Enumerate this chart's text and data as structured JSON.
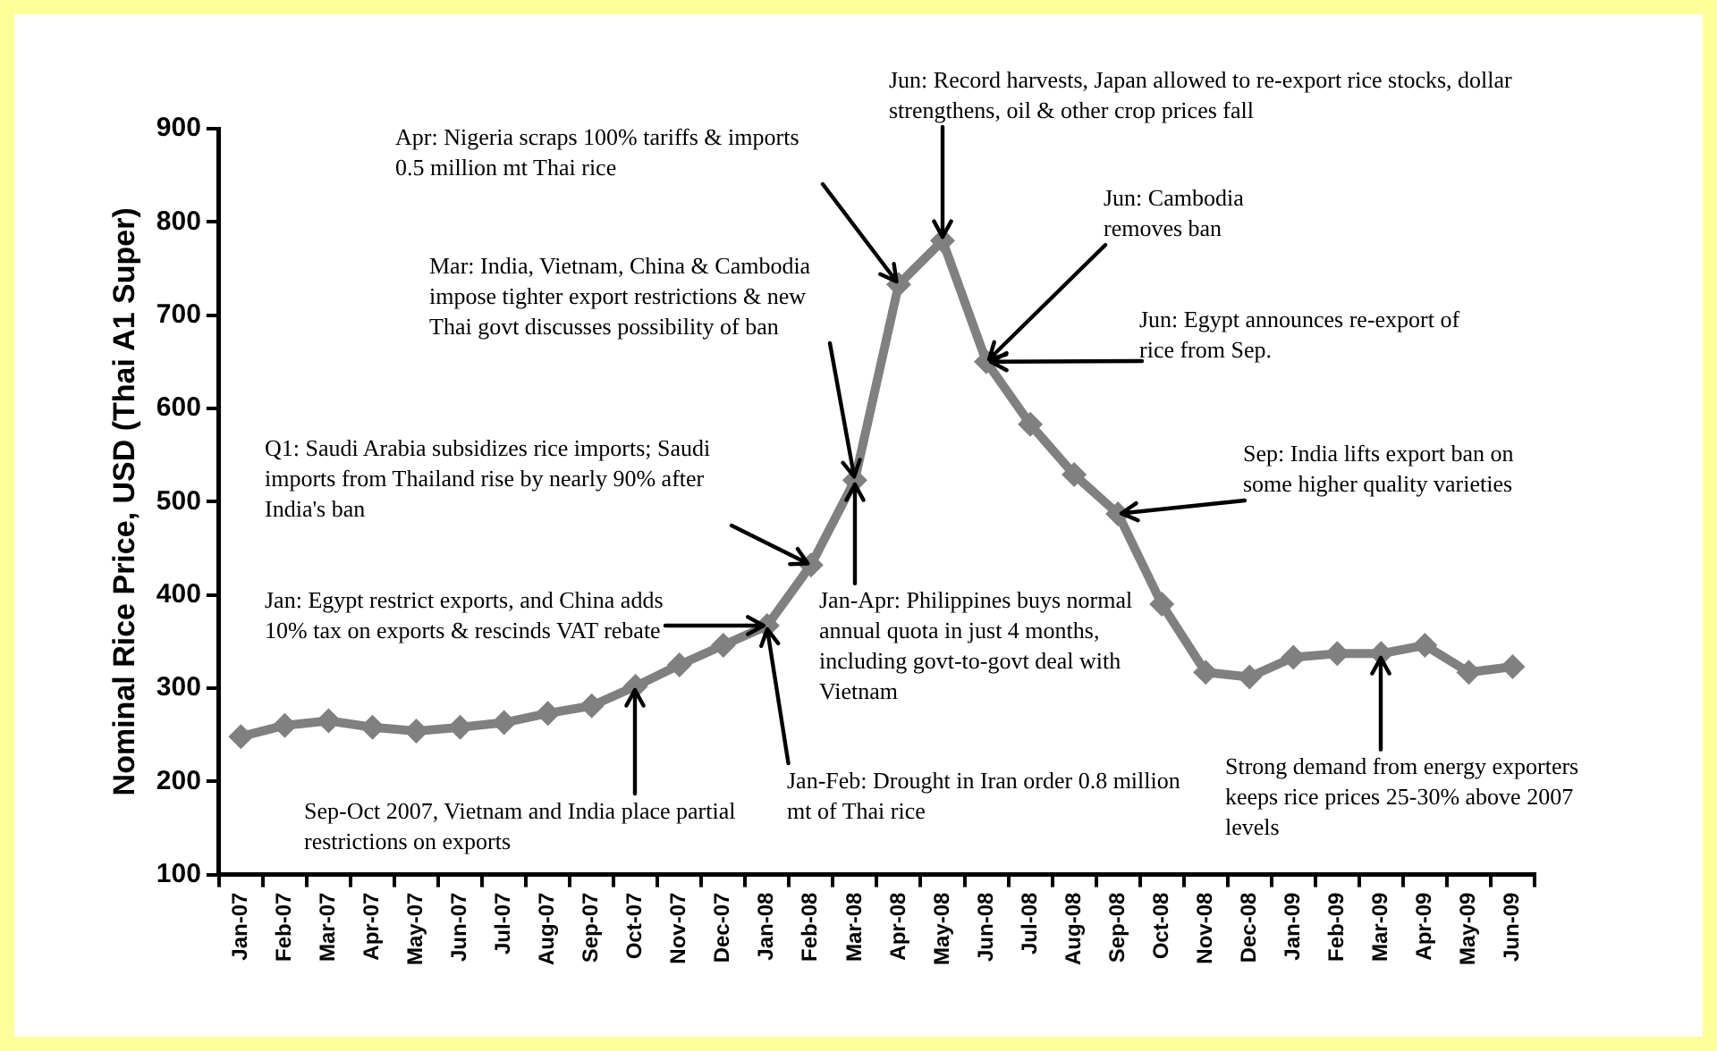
{
  "chart_data": {
    "type": "line",
    "ylabel": "Nominal Rice Price, USD (Thai A1 Super)",
    "categories": [
      "Jan-07",
      "Feb-07",
      "Mar-07",
      "Apr-07",
      "May-07",
      "Jun-07",
      "Jul-07",
      "Aug-07",
      "Sep-07",
      "Oct-07",
      "Nov-07",
      "Dec-07",
      "Jan-08",
      "Feb-08",
      "Mar-08",
      "Apr-08",
      "May-08",
      "Jun-08",
      "Jul-08",
      "Aug-08",
      "Sep-08",
      "Oct-08",
      "Nov-08",
      "Dec-08",
      "Jan-09",
      "Feb-09",
      "Mar-09",
      "Apr-09",
      "May-09",
      "Jun-09"
    ],
    "series": [
      {
        "color": "#808080",
        "values": [
          248,
          260,
          265,
          258,
          254,
          258,
          263,
          273,
          281,
          302,
          325,
          346,
          367,
          432,
          523,
          733,
          780,
          650,
          583,
          529,
          487,
          390,
          317,
          312,
          333,
          337,
          337,
          346,
          317,
          323
        ]
      }
    ],
    "ylim": [
      100,
      900
    ],
    "yticks": [
      100,
      200,
      300,
      400,
      500,
      600,
      700,
      800,
      900
    ],
    "grid": false,
    "legend": false,
    "marker": "diamond",
    "line_style": "solid",
    "annotations": [
      {
        "text": "Jun: Record harvests, Japan allowed to re-export rice stocks, dollar strengthens, oil & other crop prices fall",
        "x": "May-08",
        "y": 780
      },
      {
        "text": "Apr: Nigeria scraps 100% tariffs & imports 0.5 million mt Thai rice",
        "x": "Apr-08",
        "y": 733
      },
      {
        "text": "Mar: India, Vietnam, China & Cambodia impose tighter export restrictions & new Thai govt discusses possibility of ban",
        "x": "Mar-08",
        "y": 523
      },
      {
        "text": "Q1: Saudi Arabia subsidizes rice imports; Saudi imports from Thailand rise by nearly 90% after India's ban",
        "x": "Feb-08",
        "y": 432
      },
      {
        "text": "Jan: Egypt restrict exports, and China adds 10% tax on exports & rescinds VAT rebate",
        "x": "Jan-08",
        "y": 367
      },
      {
        "text": "Jan-Apr: Philippines buys normal annual quota in just 4 months, including govt-to-govt deal with Vietnam",
        "x": "Mar-08",
        "y": 523
      },
      {
        "text": "Jan-Feb: Drought in Iran order 0.8 million mt of Thai rice",
        "x": "Jan-08",
        "y": 367
      },
      {
        "text": "Sep-Oct 2007, Vietnam and India place partial restrictions on exports",
        "x": "Oct-07",
        "y": 302
      },
      {
        "text": "Jun: Cambodia removes ban",
        "x": "Jun-08",
        "y": 650
      },
      {
        "text": "Jun: Egypt announces re-export of rice from Sep.",
        "x": "Jun-08",
        "y": 650
      },
      {
        "text": "Sep: India lifts export ban on some higher quality varieties",
        "x": "Sep-08",
        "y": 487
      },
      {
        "text": "Strong demand from energy exporters keeps rice prices 25-30% above 2007 levels",
        "x": "Mar-09",
        "y": 337
      }
    ]
  }
}
